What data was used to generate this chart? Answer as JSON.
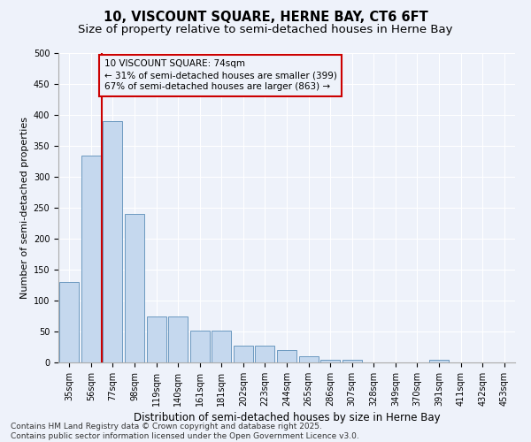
{
  "title": "10, VISCOUNT SQUARE, HERNE BAY, CT6 6FT",
  "subtitle": "Size of property relative to semi-detached houses in Herne Bay",
  "xlabel": "Distribution of semi-detached houses by size in Herne Bay",
  "ylabel": "Number of semi-detached properties",
  "categories": [
    "35sqm",
    "56sqm",
    "77sqm",
    "98sqm",
    "119sqm",
    "140sqm",
    "161sqm",
    "181sqm",
    "202sqm",
    "223sqm",
    "244sqm",
    "265sqm",
    "286sqm",
    "307sqm",
    "328sqm",
    "349sqm",
    "370sqm",
    "391sqm",
    "411sqm",
    "432sqm",
    "453sqm"
  ],
  "values": [
    130,
    335,
    390,
    240,
    75,
    75,
    52,
    52,
    27,
    27,
    20,
    10,
    5,
    5,
    0,
    0,
    0,
    4,
    0,
    0,
    0
  ],
  "bar_color": "#c5d8ee",
  "bar_edge_color": "#5b8db8",
  "highlight_line_color": "#cc0000",
  "annotation_text": "10 VISCOUNT SQUARE: 74sqm\n← 31% of semi-detached houses are smaller (399)\n67% of semi-detached houses are larger (863) →",
  "annotation_box_color": "#cc0000",
  "background_color": "#eef2fa",
  "grid_color": "#ffffff",
  "ylim": [
    0,
    500
  ],
  "yticks": [
    0,
    50,
    100,
    150,
    200,
    250,
    300,
    350,
    400,
    450,
    500
  ],
  "footer_text": "Contains HM Land Registry data © Crown copyright and database right 2025.\nContains public sector information licensed under the Open Government Licence v3.0.",
  "title_fontsize": 10.5,
  "subtitle_fontsize": 9.5,
  "xlabel_fontsize": 8.5,
  "ylabel_fontsize": 8,
  "tick_fontsize": 7,
  "annotation_fontsize": 7.5,
  "footer_fontsize": 6.5
}
